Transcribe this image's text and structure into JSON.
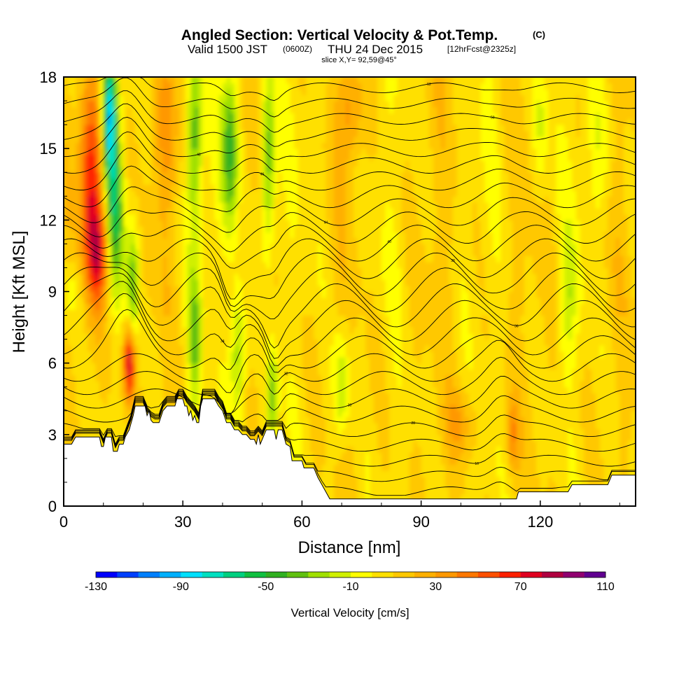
{
  "chart_data": {
    "type": "heatmap",
    "title": "Angled Section: Vertical Velocity & Pot.Temp.",
    "title_unit": "(C)",
    "subtitle_valid": "Valid 1500 JST",
    "subtitle_utc": "(0600Z)",
    "subtitle_date": "THU 24 Dec 2015",
    "subtitle_fcst": "[12hrFcst@2325z]",
    "subtitle_slice": "slice X,Y= 92,59@45°",
    "xlabel": "Distance [nm]",
    "ylabel": "Height [Kft MSL]",
    "xlim": [
      0,
      144
    ],
    "ylim": [
      0,
      18
    ],
    "x_ticks": [
      0,
      30,
      60,
      90,
      120
    ],
    "x_tick_labels": [
      "0",
      "30",
      "60",
      "90",
      "120"
    ],
    "y_ticks": [
      0,
      3,
      6,
      9,
      12,
      15,
      18
    ],
    "y_tick_labels": [
      "0",
      "3",
      "6",
      "9",
      "12",
      "15",
      "18"
    ],
    "colorbar": {
      "label": "Vertical Velocity [cm/s]",
      "min": -130,
      "max": 110,
      "step": 10,
      "tick_labels": [
        "-130",
        "-90",
        "-50",
        "-10",
        "30",
        "70",
        "110"
      ],
      "colors": [
        "#0000ff",
        "#0040ff",
        "#0080ff",
        "#00b0ff",
        "#00e0ff",
        "#00e0c0",
        "#00d080",
        "#10c040",
        "#30b020",
        "#60c010",
        "#a0e000",
        "#d0f000",
        "#ffff00",
        "#ffe000",
        "#ffc800",
        "#ffb000",
        "#ff9800",
        "#ff7800",
        "#ff5000",
        "#ff2000",
        "#e00020",
        "#b00040",
        "#900070",
        "#600090"
      ]
    },
    "terrain": [
      [
        0,
        2.6
      ],
      [
        2,
        2.6
      ],
      [
        3,
        2.9
      ],
      [
        9,
        2.9
      ],
      [
        9.5,
        2.5
      ],
      [
        10,
        2.5
      ],
      [
        10.5,
        2.9
      ],
      [
        12,
        2.9
      ],
      [
        12.5,
        2.3
      ],
      [
        13.5,
        2.3
      ],
      [
        14,
        2.6
      ],
      [
        15,
        2.6
      ],
      [
        15.5,
        2.9
      ],
      [
        16.5,
        3.2
      ],
      [
        17.5,
        3.8
      ],
      [
        18,
        4.2
      ],
      [
        20.5,
        4.2
      ],
      [
        21,
        3.8
      ],
      [
        21.5,
        4.0
      ],
      [
        22,
        3.6
      ],
      [
        22.5,
        3.5
      ],
      [
        23,
        3.5
      ],
      [
        24,
        3.5
      ],
      [
        25,
        4.0
      ],
      [
        26,
        4.2
      ],
      [
        28,
        4.2
      ],
      [
        28.5,
        4.5
      ],
      [
        30,
        4.5
      ],
      [
        30.5,
        4.2
      ],
      [
        31,
        4.2
      ],
      [
        31.5,
        3.8
      ],
      [
        32,
        4.0
      ],
      [
        32.5,
        3.6
      ],
      [
        33,
        3.8
      ],
      [
        33.5,
        3.5
      ],
      [
        34,
        3.5
      ],
      [
        34.5,
        4.2
      ],
      [
        35,
        4.5
      ],
      [
        38,
        4.5
      ],
      [
        39,
        4.2
      ],
      [
        40,
        4.0
      ],
      [
        41,
        3.5
      ],
      [
        42,
        3.5
      ],
      [
        43,
        3.2
      ],
      [
        44,
        3.2
      ],
      [
        45,
        3.0
      ],
      [
        46,
        3.0
      ],
      [
        47,
        2.8
      ],
      [
        48,
        2.8
      ],
      [
        48.5,
        2.6
      ],
      [
        49,
        3.0
      ],
      [
        49.5,
        2.6
      ],
      [
        50.5,
        3.0
      ],
      [
        51,
        3.2
      ],
      [
        53,
        3.2
      ],
      [
        53.5,
        2.8
      ],
      [
        54,
        3.2
      ],
      [
        55,
        3.2
      ],
      [
        56,
        2.6
      ],
      [
        57,
        2.5
      ],
      [
        57.5,
        1.9
      ],
      [
        60,
        1.9
      ],
      [
        60.5,
        1.6
      ],
      [
        63,
        1.6
      ],
      [
        64,
        1.2
      ],
      [
        65,
        0.9
      ],
      [
        66,
        0.6
      ],
      [
        67,
        0.3
      ],
      [
        114,
        0.3
      ],
      [
        114.5,
        0.6
      ],
      [
        127,
        0.6
      ],
      [
        128,
        0.9
      ],
      [
        137,
        0.9
      ],
      [
        138,
        1.3
      ],
      [
        144,
        1.3
      ]
    ],
    "contour_levels_c": [
      10,
      12,
      14,
      16,
      18,
      20,
      22,
      24,
      26,
      28,
      30,
      32,
      34,
      36,
      38,
      40,
      42,
      44,
      46,
      48,
      50,
      52,
      54,
      56,
      58,
      60,
      62
    ],
    "contour_labels": [
      "10",
      "16",
      "28",
      "30",
      "32",
      "34",
      "36",
      "38",
      "40",
      "44",
      "46",
      "48",
      "50",
      "52",
      "54",
      "56",
      "58",
      "60"
    ],
    "updraft_cores": [
      {
        "x": 8,
        "z": 14.5,
        "w": 60
      },
      {
        "x": 16.5,
        "z": 6.0,
        "w": 75
      },
      {
        "x": 72,
        "z": 16.5,
        "w": 25
      },
      {
        "x": 113,
        "z": 3.0,
        "w": 30
      }
    ],
    "downdraft_cores": [
      {
        "x": 12,
        "z": 16.5,
        "w": -85
      },
      {
        "x": 42,
        "z": 15.5,
        "w": -50
      },
      {
        "x": 52,
        "z": 4.0,
        "w": -45
      },
      {
        "x": 70,
        "z": 5.0,
        "w": -30
      }
    ]
  }
}
